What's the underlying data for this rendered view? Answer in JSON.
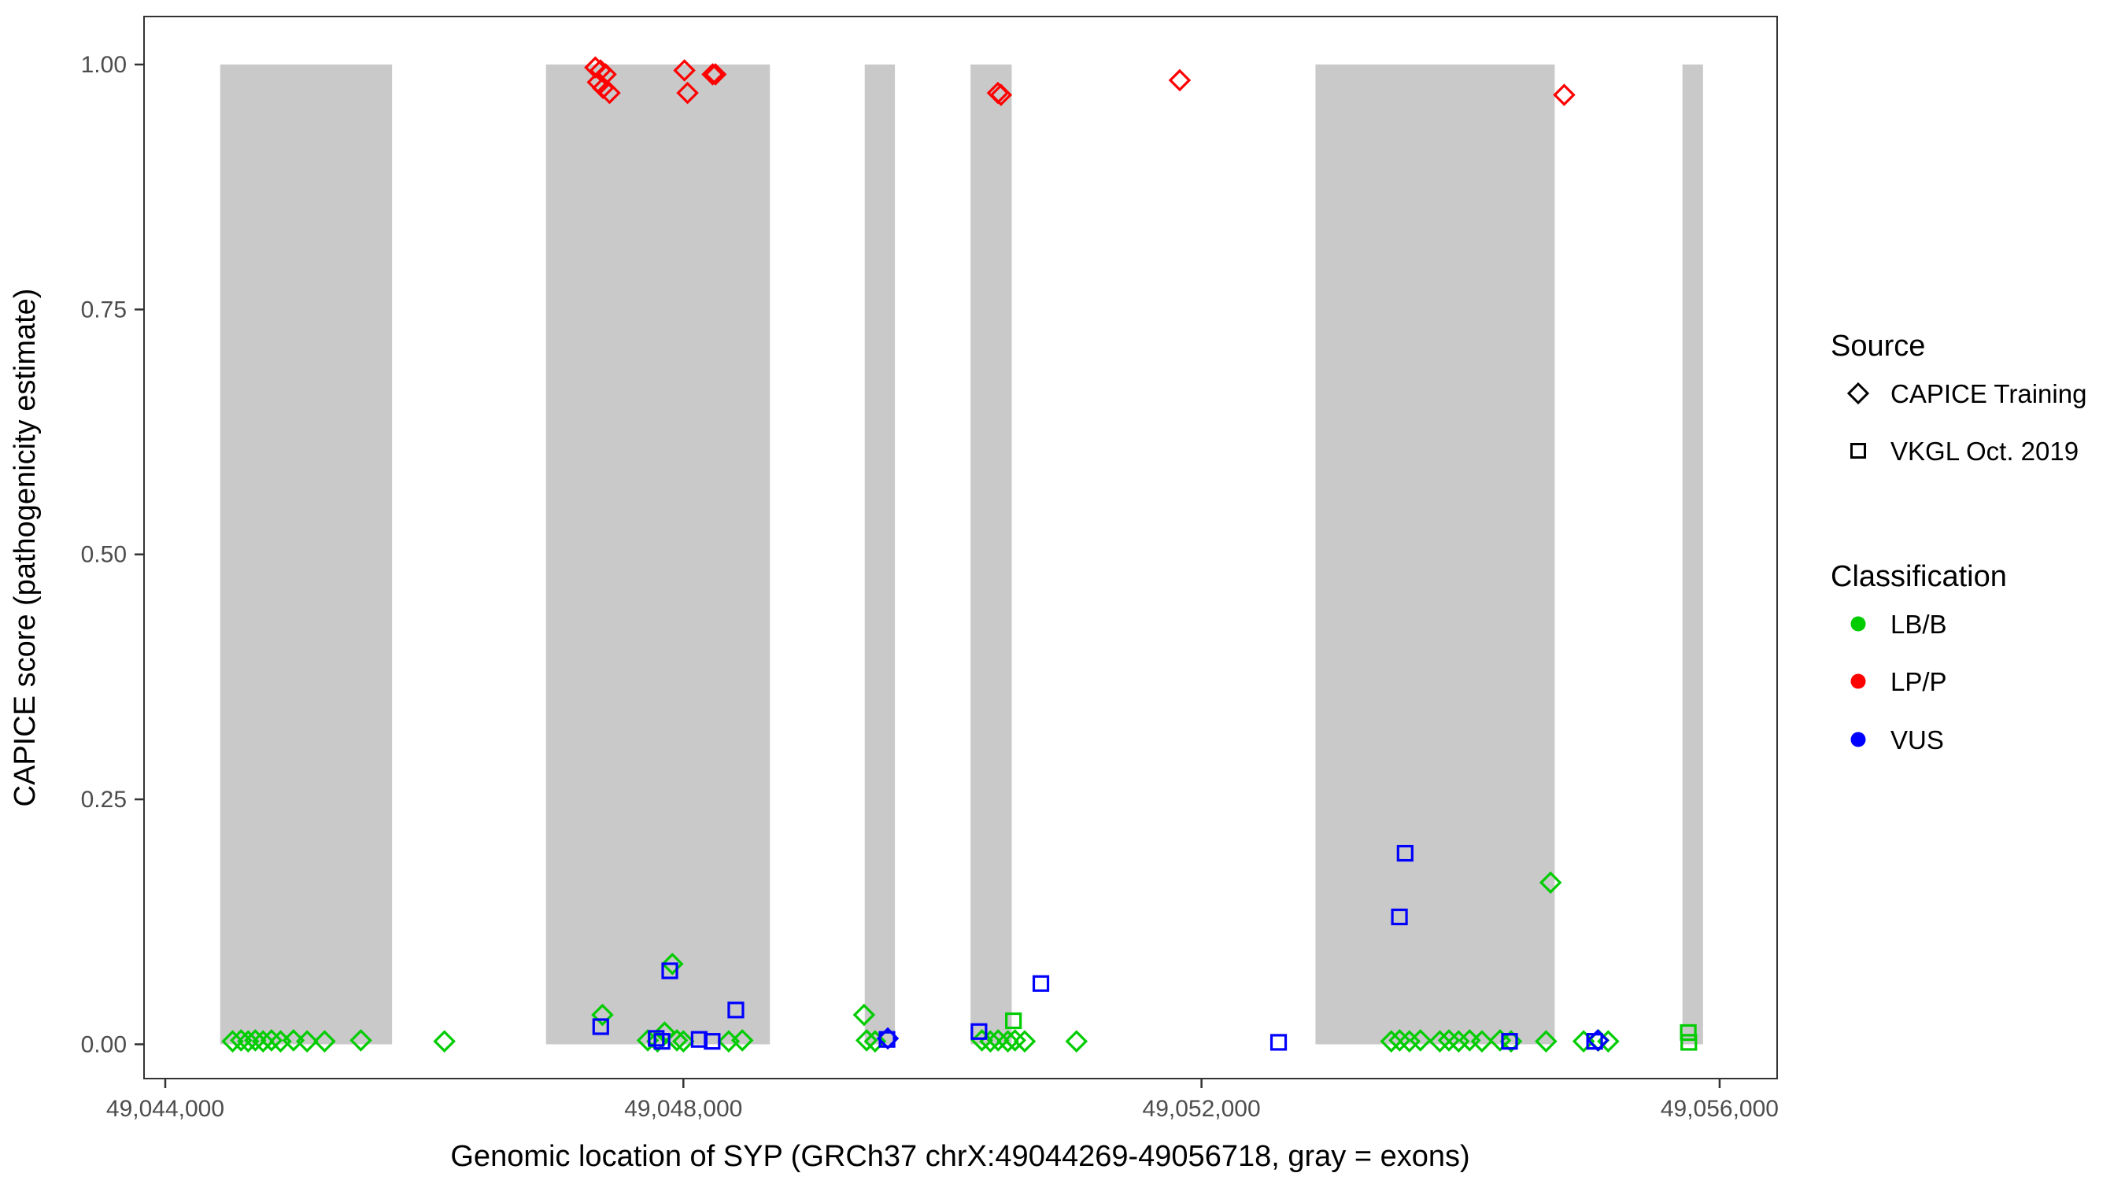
{
  "chart_data": {
    "type": "scatter",
    "title": "",
    "xlabel": "Genomic location of SYP (GRCh37 chrX:49044269-49056718, gray = exons)",
    "ylabel": "CAPICE score (pathogenicity estimate)",
    "xlim": [
      49043836,
      49056444
    ],
    "ylim": [
      -0.035,
      1.049
    ],
    "grid": false,
    "panel_border_color": "#333333",
    "exon_color": "#c9c9c9",
    "xticks": [
      {
        "value": 49044000,
        "label": "49,044,000"
      },
      {
        "value": 49048000,
        "label": "49,048,000"
      },
      {
        "value": 49052000,
        "label": "49,052,000"
      },
      {
        "value": 49056000,
        "label": "49,056,000"
      }
    ],
    "yticks": [
      {
        "value": 0.0,
        "label": "0.00"
      },
      {
        "value": 0.25,
        "label": "0.25"
      },
      {
        "value": 0.5,
        "label": "0.50"
      },
      {
        "value": 0.75,
        "label": "0.75"
      },
      {
        "value": 1.0,
        "label": "1.00"
      }
    ],
    "exons": [
      [
        49044424,
        49045751
      ],
      [
        49046939,
        49048668
      ],
      [
        49049400,
        49049633
      ],
      [
        49050217,
        49050535
      ],
      [
        49052880,
        49054727
      ],
      [
        49055713,
        49055872
      ]
    ],
    "series": [
      {
        "name": "CAPICE Training / LP/P",
        "source": "CAPICE Training",
        "classification": "LP/P",
        "marker": "diamond",
        "color": "#ff0000",
        "points": [
          [
            49047320,
            0.997
          ],
          [
            49047360,
            0.994
          ],
          [
            49047400,
            0.99
          ],
          [
            49047340,
            0.982
          ],
          [
            49047380,
            0.976
          ],
          [
            49047430,
            0.971
          ],
          [
            49048008,
            0.994
          ],
          [
            49048032,
            0.971
          ],
          [
            49048226,
            0.99
          ],
          [
            49048248,
            0.99
          ],
          [
            49050428,
            0.971
          ],
          [
            49050452,
            0.969
          ],
          [
            49051832,
            0.984
          ],
          [
            49054800,
            0.969
          ]
        ]
      },
      {
        "name": "CAPICE Training / LB/B",
        "source": "CAPICE Training",
        "classification": "LB/B",
        "marker": "diamond",
        "color": "#00cc00",
        "points": [
          [
            49044520,
            0.003
          ],
          [
            49044585,
            0.004
          ],
          [
            49044640,
            0.003
          ],
          [
            49044695,
            0.004
          ],
          [
            49044755,
            0.003
          ],
          [
            49044820,
            0.004
          ],
          [
            49044890,
            0.003
          ],
          [
            49044990,
            0.004
          ],
          [
            49045095,
            0.003
          ],
          [
            49045230,
            0.003
          ],
          [
            49045510,
            0.004
          ],
          [
            49046155,
            0.003
          ],
          [
            49047375,
            0.03
          ],
          [
            49047725,
            0.004
          ],
          [
            49047800,
            0.003
          ],
          [
            49047855,
            0.012
          ],
          [
            49047915,
            0.082
          ],
          [
            49047950,
            0.004
          ],
          [
            49048000,
            0.003
          ],
          [
            49048350,
            0.003
          ],
          [
            49048455,
            0.004
          ],
          [
            49049395,
            0.03
          ],
          [
            49049415,
            0.004
          ],
          [
            49049480,
            0.003
          ],
          [
            49050305,
            0.004
          ],
          [
            49050370,
            0.003
          ],
          [
            49050430,
            0.004
          ],
          [
            49050505,
            0.003
          ],
          [
            49050560,
            0.004
          ],
          [
            49050635,
            0.003
          ],
          [
            49051035,
            0.003
          ],
          [
            49053465,
            0.003
          ],
          [
            49053530,
            0.004
          ],
          [
            49053605,
            0.003
          ],
          [
            49053690,
            0.004
          ],
          [
            49053840,
            0.003
          ],
          [
            49053910,
            0.004
          ],
          [
            49053985,
            0.003
          ],
          [
            49054070,
            0.004
          ],
          [
            49054165,
            0.003
          ],
          [
            49054305,
            0.004
          ],
          [
            49054390,
            0.003
          ],
          [
            49054660,
            0.003
          ],
          [
            49054695,
            0.165
          ],
          [
            49054950,
            0.003
          ],
          [
            49055065,
            0.004
          ],
          [
            49055140,
            0.003
          ]
        ]
      },
      {
        "name": "CAPICE Training / VUS",
        "source": "CAPICE Training",
        "classification": "VUS",
        "marker": "diamond",
        "color": "#0000ff",
        "points": [
          [
            49049578,
            0.006
          ],
          [
            49055060,
            0.004
          ]
        ]
      },
      {
        "name": "VKGL Oct. 2019 / LB/B",
        "source": "VKGL Oct. 2019",
        "classification": "LB/B",
        "marker": "square",
        "color": "#00cc00",
        "points": [
          [
            49050548,
            0.024
          ],
          [
            49055758,
            0.012
          ],
          [
            49055762,
            0.002
          ]
        ]
      },
      {
        "name": "VKGL Oct. 2019 / VUS",
        "source": "VKGL Oct. 2019",
        "classification": "VUS",
        "marker": "square",
        "color": "#0000ff",
        "points": [
          [
            49047362,
            0.018
          ],
          [
            49047790,
            0.006
          ],
          [
            49047835,
            0.003
          ],
          [
            49047895,
            0.075
          ],
          [
            49048122,
            0.005
          ],
          [
            49048222,
            0.003
          ],
          [
            49048405,
            0.035
          ],
          [
            49049572,
            0.005
          ],
          [
            49050282,
            0.013
          ],
          [
            49050760,
            0.062
          ],
          [
            49052595,
            0.002
          ],
          [
            49053528,
            0.13
          ],
          [
            49053572,
            0.195
          ],
          [
            49054378,
            0.003
          ],
          [
            49055035,
            0.003
          ]
        ]
      }
    ],
    "legend": {
      "position": "right",
      "source": {
        "title": "Source",
        "items": [
          {
            "label": "CAPICE Training",
            "marker": "diamond"
          },
          {
            "label": "VKGL Oct. 2019",
            "marker": "square"
          }
        ]
      },
      "classification": {
        "title": "Classification",
        "items": [
          {
            "label": "LB/B",
            "color": "#00cc00"
          },
          {
            "label": "LP/P",
            "color": "#ff0000"
          },
          {
            "label": "VUS",
            "color": "#0000ff"
          }
        ]
      }
    }
  }
}
